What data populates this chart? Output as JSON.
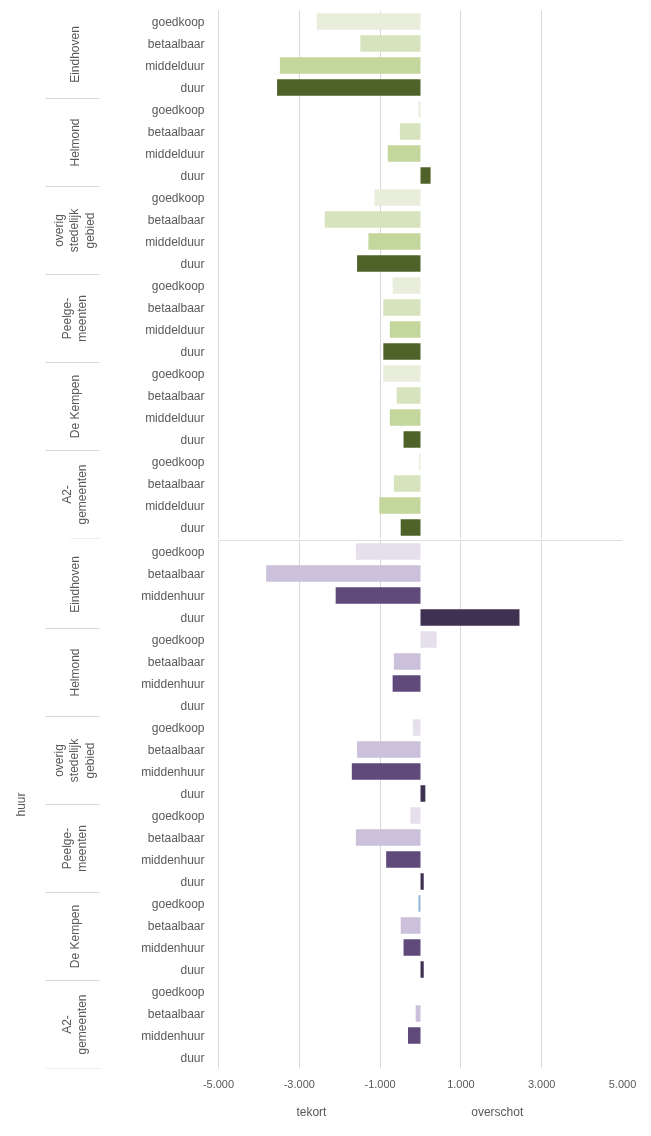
{
  "chart_data": [
    {
      "type": "bar",
      "orientation": "horizontal",
      "tick_labels": "y",
      "grid": "x",
      "categories": [
        "goedkoop",
        "betaalbaar",
        "middelduur",
        "duur",
        "goedkoop",
        "betaalbaar",
        "middelduur",
        "duur",
        "goedkoop",
        "betaalbaar",
        "middelduur",
        "duur",
        "goedkoop",
        "betaalbaar",
        "middelduur",
        "duur",
        "goedkoop",
        "betaalbaar",
        "middelduur",
        "duur",
        "goedkoop",
        "betaalbaar",
        "middelduur",
        "duur"
      ],
      "values": [
        -2570,
        -1490,
        -3480,
        -3550,
        -50,
        -510,
        -810,
        250,
        -1140,
        -2370,
        -1290,
        -1570,
        -690,
        -920,
        -760,
        -920,
        -920,
        -590,
        -760,
        -420,
        -40,
        -660,
        -1020,
        -490
      ],
      "colors": [
        "#e9eedc",
        "#d6e3bd",
        "#c3d69b",
        "#4f6228",
        "#e9eedc",
        "#d6e3bd",
        "#c3d69b",
        "#4f6228",
        "#e9eedc",
        "#d6e3bd",
        "#c3d69b",
        "#4f6228",
        "#e9eedc",
        "#d6e3bd",
        "#c3d69b",
        "#4f6228",
        "#e9eedc",
        "#d6e3bd",
        "#c3d69b",
        "#4f6228",
        "#e9eedc",
        "#d6e3bd",
        "#c3d69b",
        "#4f6228"
      ],
      "xlim": [
        -5000,
        5000
      ],
      "xticks": [
        {
          "value": -5000,
          "label": null
        },
        {
          "value": -3000,
          "label": null
        },
        {
          "value": -1000,
          "label": null
        },
        {
          "value": 1000,
          "label": null
        },
        {
          "value": 3000,
          "label": null
        },
        {
          "value": 5000,
          "label": null
        }
      ],
      "annotations": [
        "Eindhoven",
        "Helmond",
        "overig stedelijk gebied",
        "Peelge-meenten",
        "De Kempen",
        "A2-gemeenten"
      ]
    },
    {
      "type": "bar",
      "orientation": "horizontal",
      "grid": "x",
      "ylabel": "huur",
      "categories": [
        "goedkoop",
        "betaalbaar",
        "middenhuur",
        "duur",
        "goedkoop",
        "betaalbaar",
        "middenhuur",
        "duur",
        "goedkoop",
        "betaalbaar",
        "middenhuur",
        "duur",
        "goedkoop",
        "betaalbaar",
        "middenhuur",
        "duur",
        "goedkoop",
        "betaalbaar",
        "middenhuur",
        "duur",
        "goedkoop",
        "betaalbaar",
        "middenhuur",
        "duur"
      ],
      "values": [
        -1600,
        -3820,
        -2100,
        2450,
        400,
        -660,
        -690,
        null,
        -190,
        -1570,
        -1700,
        120,
        -250,
        -1600,
        -850,
        80,
        -50,
        -490,
        -420,
        80,
        null,
        -120,
        -310,
        null
      ],
      "colors": [
        "#e5e0ec",
        "#ccc1da",
        "#604a7b",
        "#3f3151",
        "#e5e0ec",
        "#ccc1da",
        "#604a7b",
        "#3f3151",
        "#e5e0ec",
        "#ccc1da",
        "#604a7b",
        "#3f3151",
        "#e5e0ec",
        "#ccc1da",
        "#604a7b",
        "#3f3151",
        "#95b3d7",
        "#ccc1da",
        "#604a7b",
        "#3f3151",
        "#e5e0ec",
        "#ccc1da",
        "#604a7b",
        "#3f3151"
      ],
      "xlim": [
        -5000,
        5000
      ],
      "xticks": [
        {
          "value": -5000,
          "label": "-5.000"
        },
        {
          "value": -3000,
          "label": "-3.000"
        },
        {
          "value": -1000,
          "label": "-1.000"
        },
        {
          "value": 1000,
          "label": "1.000"
        },
        {
          "value": 3000,
          "label": "3.000"
        },
        {
          "value": 5000,
          "label": "5.000"
        }
      ],
      "annotations": [
        "Eindhoven",
        "Helmond",
        "overig stedelijk gebied",
        "Peelge-meenten",
        "De Kempen",
        "A2-gemeenten",
        "tekort",
        "overschot"
      ]
    }
  ]
}
